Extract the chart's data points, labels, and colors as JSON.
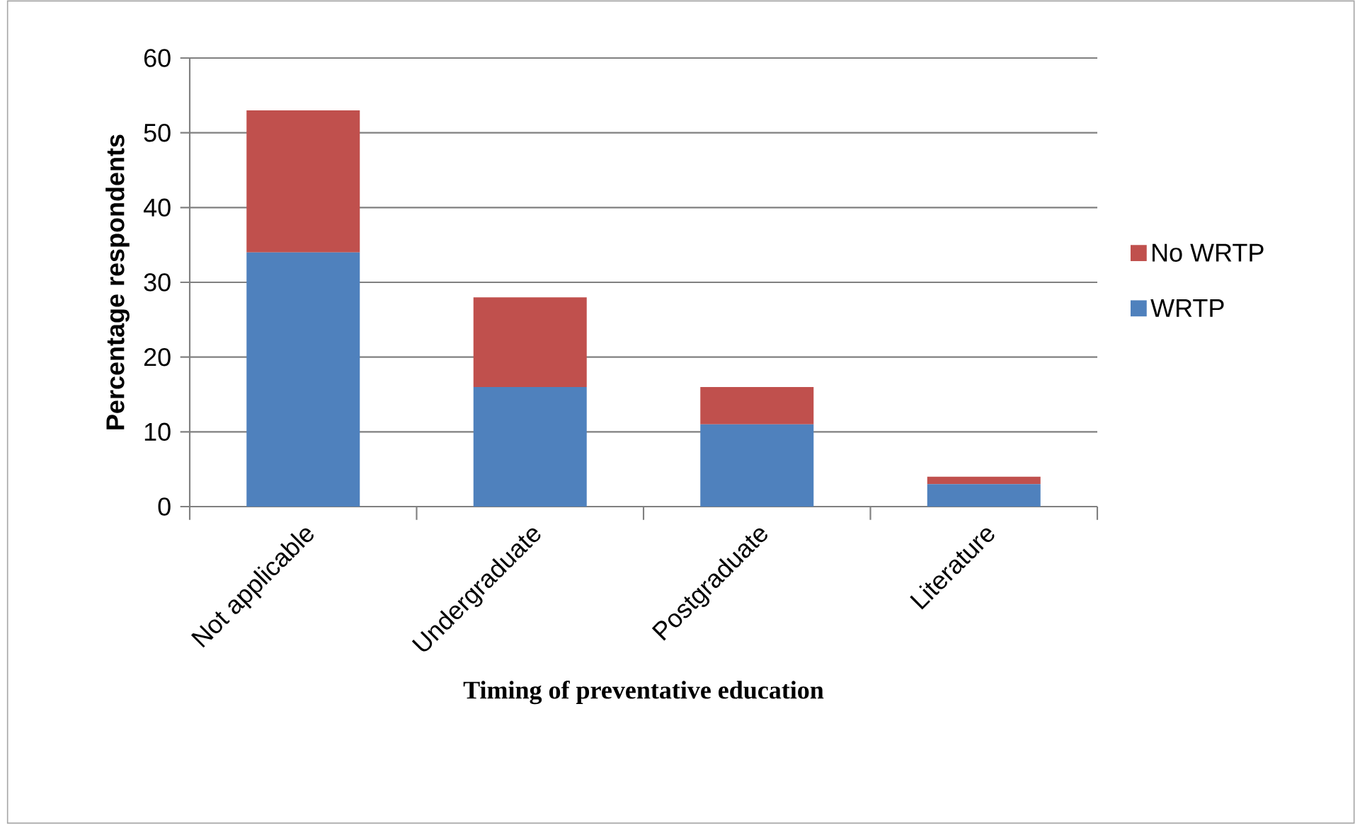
{
  "chart_data": {
    "type": "bar",
    "stacked": true,
    "xlabel": "Timing of preventative education",
    "ylabel": "Percentage respondents",
    "categories": [
      "Not applicable",
      "Undergraduate",
      "Postgraduate",
      "Literature"
    ],
    "series": [
      {
        "name": "WRTP",
        "color": "#4f81bd",
        "values": [
          34,
          16,
          11,
          3
        ]
      },
      {
        "name": "No WRTP",
        "color": "#c0504d",
        "values": [
          19,
          12,
          5,
          1
        ]
      }
    ],
    "ylim": [
      0,
      60
    ],
    "yticks": [
      0,
      10,
      20,
      30,
      40,
      50,
      60
    ],
    "grid": "y",
    "legend": "right"
  }
}
